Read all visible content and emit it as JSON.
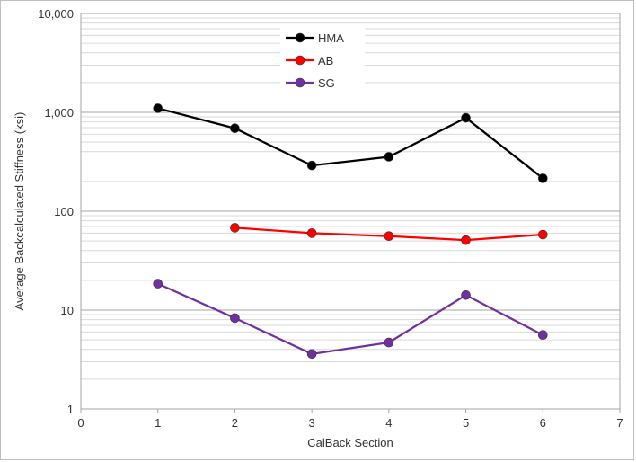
{
  "chart_data": {
    "type": "line",
    "title": "",
    "xlabel": "CalBack Section",
    "ylabel": "Average Backcalculated Stiffness (ksi)",
    "xlim": [
      0,
      7
    ],
    "ylim": [
      1,
      10000
    ],
    "yscale": "log",
    "grid": true,
    "legend_position": "top-center",
    "x_ticks": [
      "0",
      "1",
      "2",
      "3",
      "4",
      "5",
      "6",
      "7"
    ],
    "y_ticks": [
      "1",
      "10",
      "100",
      "1,000",
      "10,000"
    ],
    "series": [
      {
        "name": "HMA",
        "color": "#000000",
        "x": [
          1,
          2,
          3,
          4,
          5,
          6
        ],
        "y": [
          1100,
          690,
          290,
          355,
          880,
          215
        ]
      },
      {
        "name": "AB",
        "color": "#ff0000",
        "x": [
          2,
          3,
          4,
          5,
          6
        ],
        "y": [
          68,
          60,
          56,
          51,
          58
        ]
      },
      {
        "name": "SG",
        "color": "#7030a0",
        "x": [
          1,
          2,
          3,
          4,
          5,
          6
        ],
        "y": [
          18.5,
          8.3,
          3.6,
          4.7,
          14.2,
          5.6
        ]
      }
    ]
  }
}
